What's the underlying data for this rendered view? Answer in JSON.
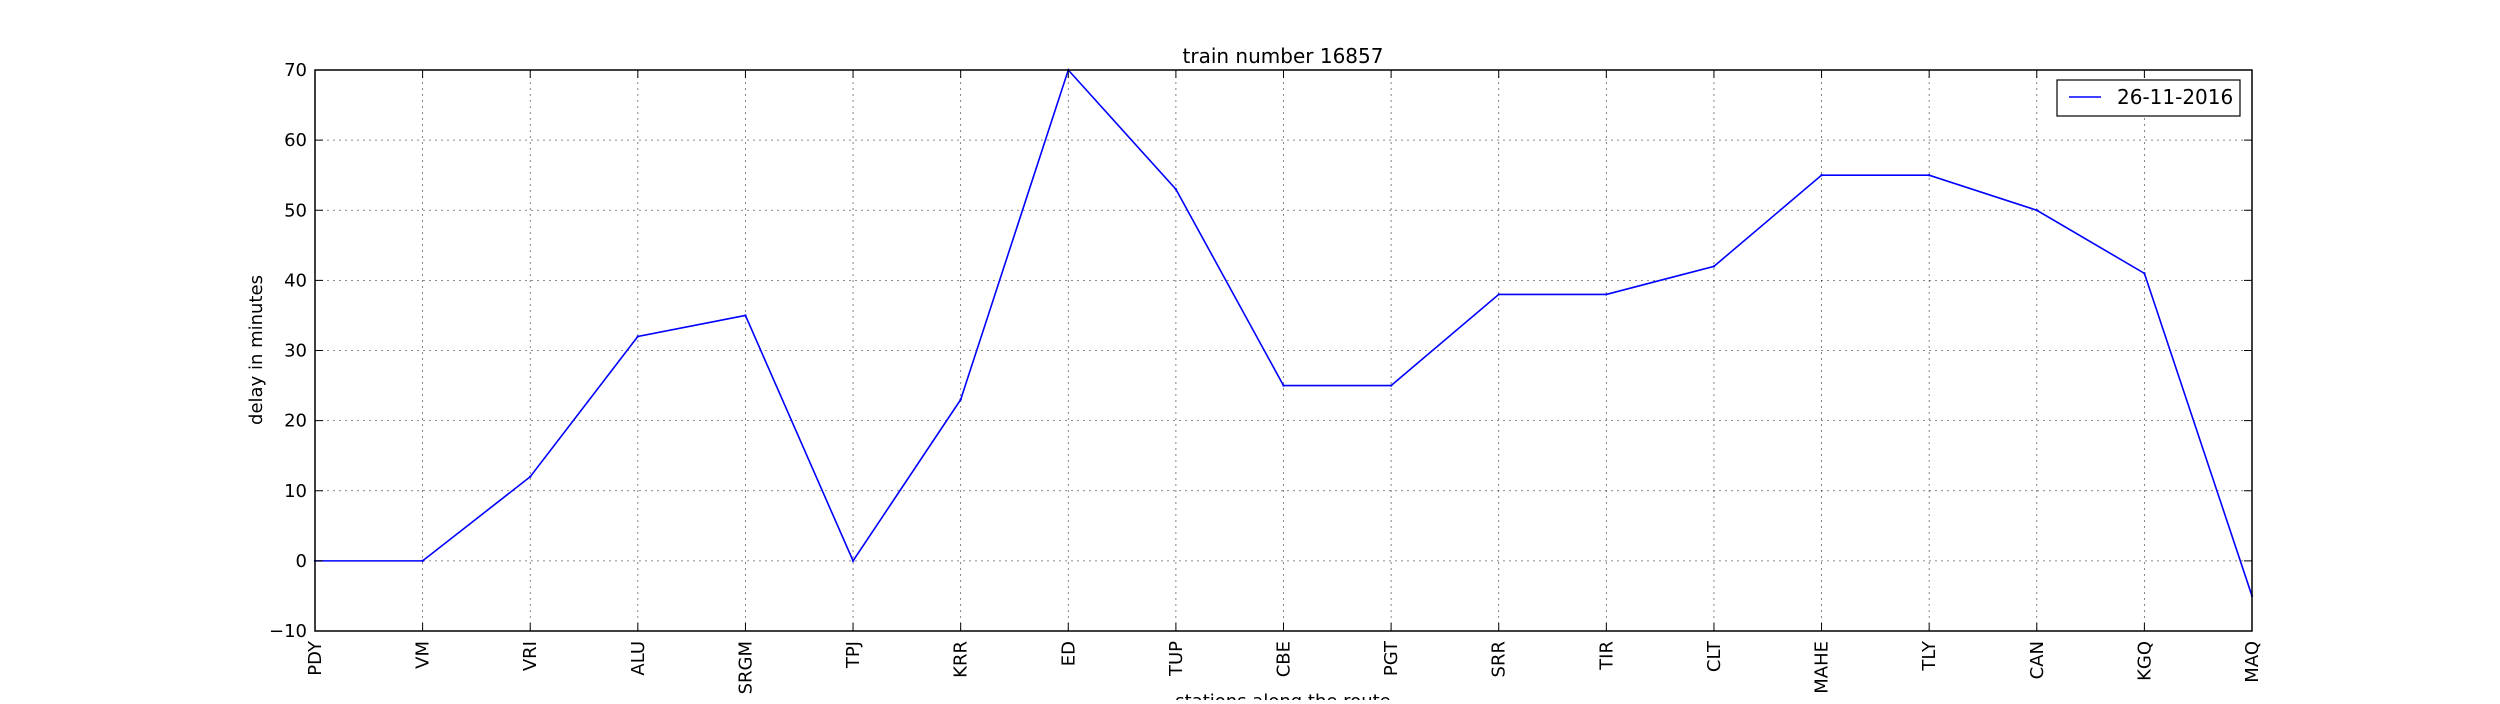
{
  "chart_data": {
    "type": "line",
    "title": "train number 16857",
    "xlabel": "stations along the route",
    "ylabel": "delay in minutes",
    "categories": [
      "PDY",
      "VM",
      "VRI",
      "ALU",
      "SRGM",
      "TPJ",
      "KRR",
      "ED",
      "TUP",
      "CBE",
      "PGT",
      "SRR",
      "TIR",
      "CLT",
      "MAHE",
      "TLY",
      "CAN",
      "KGQ",
      "MAQ"
    ],
    "series": [
      {
        "name": "26-11-2016",
        "color": "#0000ff",
        "values": [
          0,
          0,
          12,
          32,
          35,
          0,
          23,
          70,
          53,
          25,
          25,
          38,
          38,
          42,
          55,
          55,
          50,
          41,
          -5
        ]
      }
    ],
    "ylim": [
      -10,
      70
    ],
    "yticks": [
      -10,
      0,
      10,
      20,
      30,
      40,
      50,
      60,
      70
    ],
    "grid": true,
    "legend_position": "top-right"
  }
}
